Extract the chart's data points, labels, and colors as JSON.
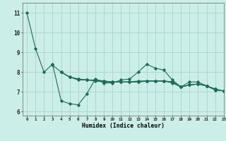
{
  "background_color": "#cceee8",
  "grid_color": "#aad8d0",
  "line_color": "#1a6b5a",
  "xlabel": "Humidex (Indice chaleur)",
  "xlim": [
    -0.5,
    23
  ],
  "ylim": [
    5.8,
    11.5
  ],
  "yticks": [
    6,
    7,
    8,
    9,
    10,
    11
  ],
  "xticks": [
    0,
    1,
    2,
    3,
    4,
    5,
    6,
    7,
    8,
    9,
    10,
    11,
    12,
    13,
    14,
    15,
    16,
    17,
    18,
    19,
    20,
    21,
    22,
    23
  ],
  "series": [
    [
      11.0,
      9.2,
      8.0,
      8.4,
      6.55,
      6.4,
      6.35,
      6.9,
      7.65,
      7.45,
      7.45,
      7.6,
      7.65,
      8.0,
      8.4,
      8.2,
      8.1,
      7.6,
      7.25,
      7.5,
      7.5,
      7.3,
      7.1,
      7.05
    ],
    [
      null,
      null,
      null,
      8.35,
      8.0,
      7.75,
      7.65,
      7.6,
      7.6,
      7.55,
      7.5,
      7.5,
      7.5,
      7.5,
      7.55,
      7.55,
      7.55,
      7.5,
      7.25,
      7.35,
      7.4,
      7.3,
      7.15,
      null
    ],
    [
      null,
      null,
      null,
      null,
      8.0,
      7.75,
      7.65,
      7.6,
      7.6,
      7.55,
      7.5,
      7.5,
      7.5,
      7.5,
      7.55,
      7.55,
      7.55,
      7.5,
      7.25,
      7.35,
      7.4,
      7.3,
      7.15,
      7.05
    ],
    [
      null,
      null,
      null,
      null,
      8.0,
      7.75,
      7.6,
      7.6,
      7.55,
      7.5,
      7.5,
      7.5,
      7.5,
      7.55,
      7.55,
      7.55,
      7.55,
      7.45,
      7.25,
      7.35,
      7.4,
      7.3,
      7.1,
      7.05
    ]
  ]
}
